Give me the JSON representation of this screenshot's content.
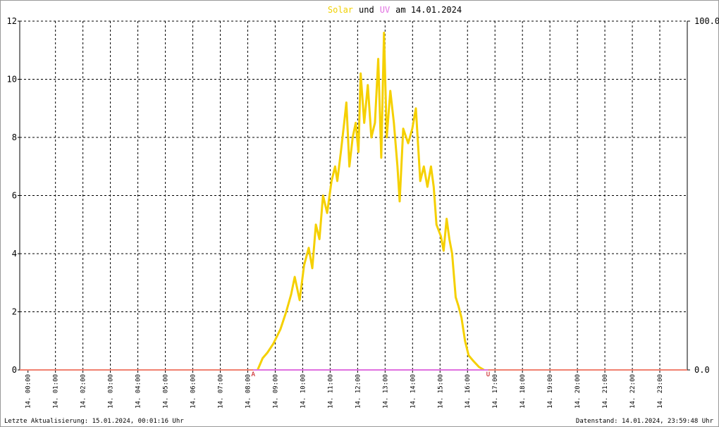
{
  "chart_data": {
    "type": "line",
    "title_parts": [
      {
        "text": "Solar",
        "color": "#f0d000"
      },
      {
        "text": "und",
        "color": "#000000"
      },
      {
        "text": "UV",
        "color": "#e070e0"
      },
      {
        "text": "am 14.01.2024",
        "color": "#000000"
      }
    ],
    "xlim": [
      -0.3,
      24.0
    ],
    "xticks": [
      {
        "value": 0,
        "label": "14. 00:00"
      },
      {
        "value": 1,
        "label": "14. 01:00"
      },
      {
        "value": 2,
        "label": "14. 02:00"
      },
      {
        "value": 3,
        "label": "14. 03:00"
      },
      {
        "value": 4,
        "label": "14. 04:00"
      },
      {
        "value": 5,
        "label": "14. 05:00"
      },
      {
        "value": 6,
        "label": "14. 06:00"
      },
      {
        "value": 7,
        "label": "14. 07:00"
      },
      {
        "value": 8,
        "label": "14. 08:00"
      },
      {
        "value": 9,
        "label": "14. 09:00"
      },
      {
        "value": 10,
        "label": "14. 10:00"
      },
      {
        "value": 11,
        "label": "14. 11:00"
      },
      {
        "value": 12,
        "label": "14. 12:00"
      },
      {
        "value": 13,
        "label": "14. 13:00"
      },
      {
        "value": 14,
        "label": "14. 14:00"
      },
      {
        "value": 15,
        "label": "14. 15:00"
      },
      {
        "value": 16,
        "label": "14. 16:00"
      },
      {
        "value": 17,
        "label": "14. 17:00"
      },
      {
        "value": 18,
        "label": "14. 18:00"
      },
      {
        "value": 19,
        "label": "14. 19:00"
      },
      {
        "value": 20,
        "label": "14. 20:00"
      },
      {
        "value": 21,
        "label": "14. 21:00"
      },
      {
        "value": 22,
        "label": "14. 22:00"
      },
      {
        "value": 23,
        "label": "14. 23:00"
      }
    ],
    "ylim": [
      0,
      12
    ],
    "yticks": [
      0,
      2,
      4,
      6,
      8,
      10,
      12
    ],
    "y2lim": [
      0,
      100
    ],
    "y2ticks": [
      {
        "value": 0,
        "label": "0.0"
      },
      {
        "value": 100,
        "label": "100.0"
      }
    ],
    "grid": true,
    "series": [
      {
        "name": "Solar",
        "color": "#f5d000",
        "x": [
          8.36,
          8.54,
          8.72,
          8.93,
          9.19,
          9.4,
          9.58,
          9.71,
          9.89,
          10.05,
          10.22,
          10.35,
          10.48,
          10.61,
          10.74,
          10.89,
          11.05,
          11.18,
          11.26,
          11.39,
          11.51,
          11.59,
          11.7,
          11.82,
          11.93,
          12.03,
          12.11,
          12.24,
          12.37,
          12.5,
          12.63,
          12.75,
          12.86,
          12.96,
          13.06,
          13.19,
          13.32,
          13.45,
          13.53,
          13.66,
          13.84,
          13.99,
          14.12,
          14.28,
          14.41,
          14.54,
          14.67,
          14.77,
          14.87,
          15.03,
          15.13,
          15.24,
          15.34,
          15.44,
          15.57,
          15.67,
          15.78,
          15.91,
          16.04,
          16.22,
          16.42,
          16.6
        ],
        "values": [
          0,
          0.4,
          0.6,
          0.9,
          1.4,
          2.0,
          2.6,
          3.2,
          2.4,
          3.6,
          4.2,
          3.5,
          5.0,
          4.5,
          6.0,
          5.4,
          6.5,
          7.0,
          6.5,
          7.5,
          8.5,
          9.2,
          7.0,
          8.0,
          8.5,
          7.5,
          10.2,
          8.5,
          9.8,
          8.0,
          8.5,
          10.7,
          7.3,
          11.6,
          8.0,
          9.6,
          8.5,
          7.0,
          5.8,
          8.3,
          7.8,
          8.3,
          9.0,
          6.5,
          7.0,
          6.3,
          7.0,
          6.3,
          5.0,
          4.6,
          4.1,
          5.2,
          4.5,
          4.0,
          2.5,
          2.2,
          1.8,
          1.0,
          0.5,
          0.3,
          0.1,
          0.0
        ]
      },
      {
        "name": "UV",
        "color": "#e070e0",
        "axis": "y2",
        "x": [
          8.2,
          16.75
        ],
        "values": [
          0,
          0
        ]
      }
    ],
    "annotations": [
      {
        "text": "A",
        "x": 8.2
      },
      {
        "text": "U",
        "x": 16.75
      }
    ],
    "footer_left": "Letzte Aktualisierung: 15.01.2024, 00:01:16 Uhr",
    "footer_right": "Datenstand: 14.01.2024, 23:59:48 Uhr"
  }
}
